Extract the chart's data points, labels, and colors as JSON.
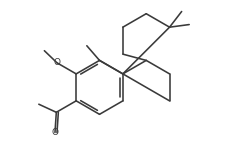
{
  "background": "#ffffff",
  "line_color": "#3a3a3a",
  "line_width": 1.15,
  "figsize": [
    2.28,
    1.44
  ],
  "dpi": 100,
  "bl": 1.0
}
